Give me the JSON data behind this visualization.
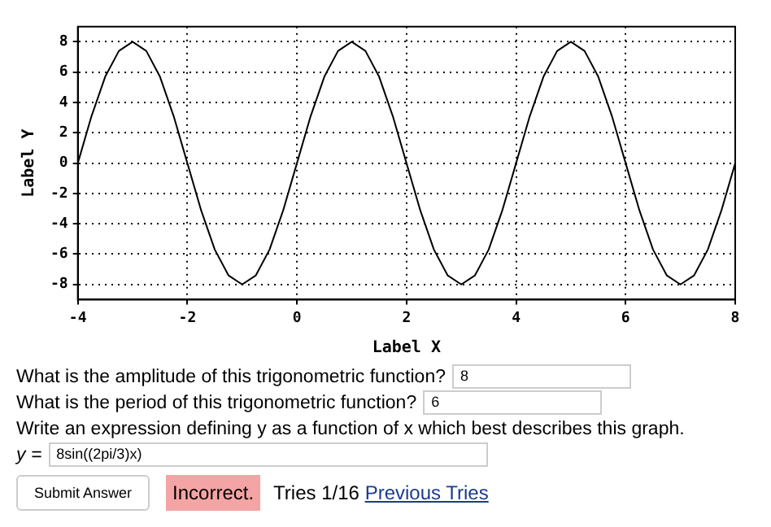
{
  "chart_data": {
    "type": "line",
    "xlabel": "Label X",
    "ylabel": "Label Y",
    "x": [
      -4,
      -3.75,
      -3.5,
      -3.25,
      -3,
      -2.75,
      -2.5,
      -2.25,
      -2,
      -1.75,
      -1.5,
      -1.25,
      -1,
      -0.75,
      -0.5,
      -0.25,
      0,
      0.25,
      0.5,
      0.75,
      1,
      1.25,
      1.5,
      1.75,
      2,
      2.25,
      2.5,
      2.75,
      3,
      3.25,
      3.5,
      3.75,
      4,
      4.25,
      4.5,
      4.75,
      5,
      5.25,
      5.5,
      5.75,
      6,
      6.25,
      6.5,
      6.75,
      7,
      7.25,
      7.5,
      7.75,
      8
    ],
    "series": [
      {
        "color": "#000000",
        "values": [
          0,
          3.1,
          5.7,
          7.4,
          8,
          7.4,
          5.7,
          3.1,
          0,
          -3.1,
          -5.7,
          -7.4,
          -8,
          -7.4,
          -5.7,
          -3.1,
          0,
          3.1,
          5.7,
          7.4,
          8,
          7.4,
          5.7,
          3.1,
          0,
          -3.1,
          -5.7,
          -7.4,
          -8,
          -7.4,
          -5.7,
          -3.1,
          0,
          3.1,
          5.7,
          7.4,
          8,
          7.4,
          5.7,
          3.1,
          0,
          -3.1,
          -5.7,
          -7.4,
          -8,
          -7.4,
          -5.7,
          -3.1,
          0
        ]
      }
    ],
    "xlim": [
      -4,
      8
    ],
    "xticks": [
      -4,
      -2,
      0,
      2,
      4,
      6,
      8
    ],
    "ylim": [
      -9,
      9
    ],
    "yticks": [
      -8,
      -6,
      -4,
      -2,
      0,
      2,
      4,
      6,
      8
    ],
    "grid": true,
    "marker": "none",
    "line_style": "solid",
    "legend": false,
    "annotations": [
      "What is the amplitude of this trigonometric function?",
      "8",
      "What is the period of this trigonometric function?",
      "6",
      "Write an expression defining y as a function of x which best describes this graph.",
      "y =",
      "8sin((2pi/3)x)",
      "Submit Answer",
      "Incorrect.",
      "Tries 1/16",
      "Previous Tries"
    ]
  }
}
